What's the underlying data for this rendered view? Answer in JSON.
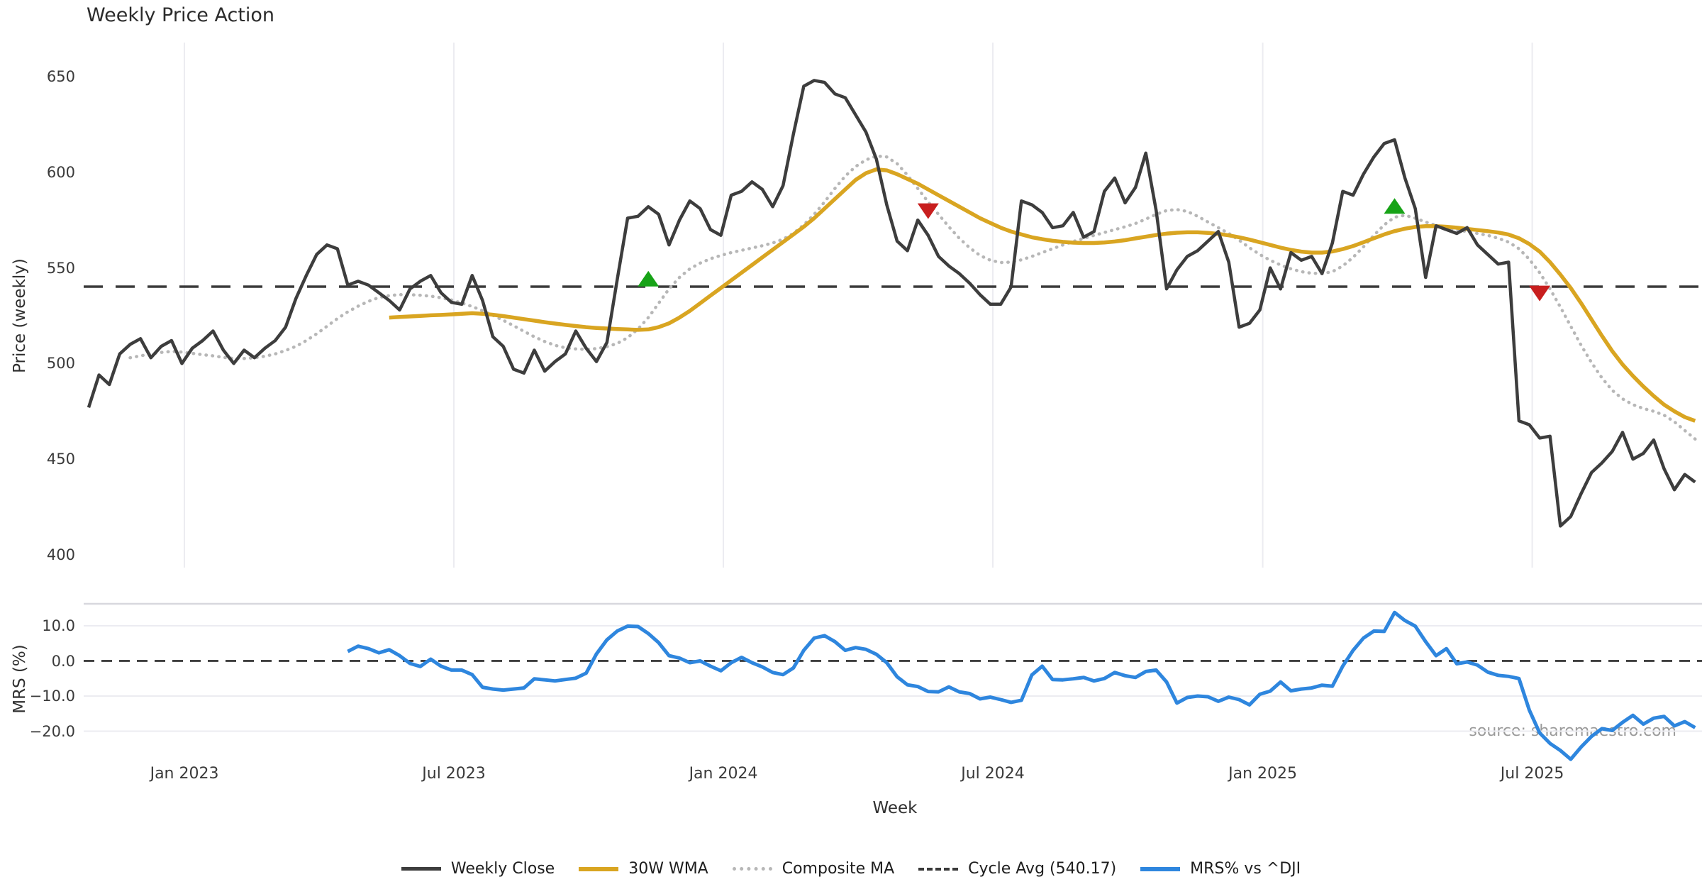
{
  "title": "Weekly Price Action",
  "source_text": "source: sharemaestro.com",
  "colors": {
    "close": "#3d3d3d",
    "wma": "#d9a521",
    "composite": "#b7b7b7",
    "cycle_avg": "#3a3a3a",
    "mrs": "#2e86de",
    "buy_marker": "#17a317",
    "sell_marker": "#c81e1e",
    "grid": "#ececf1",
    "panel_spine": "#d8d8de",
    "zero_dash": "#1f1f1f",
    "source": "#9a9a9a"
  },
  "chart_data": [
    {
      "type": "line",
      "panel": "price",
      "title": "Weekly Price Action",
      "xlabel": "Week",
      "ylabel": "Price (weekly)",
      "ylim": [
        393,
        668
      ],
      "yticks": [
        {
          "label": "650",
          "value": 650
        },
        {
          "label": "600",
          "value": 600
        },
        {
          "label": "550",
          "value": 550
        },
        {
          "label": "500",
          "value": 500
        },
        {
          "label": "450",
          "value": 450
        },
        {
          "label": "400",
          "value": 400
        }
      ],
      "xticks": [
        {
          "label": "Jan 2023",
          "week": 9.24
        },
        {
          "label": "Jul 2023",
          "week": 35.24
        },
        {
          "label": "Jan 2024",
          "week": 61.24
        },
        {
          "label": "Jul 2024",
          "week": 87.24
        },
        {
          "label": "Jan 2025",
          "week": 113.28
        },
        {
          "label": "Jul 2025",
          "week": 139.28
        }
      ],
      "grid": "vertical-only",
      "cycle_avg": {
        "name": "Cycle Avg (540.17)",
        "value": 540.17
      },
      "series": [
        {
          "name": "Weekly Close",
          "style": "solid",
          "week_start": 0,
          "values": [
            477,
            494,
            489,
            505,
            510,
            513,
            503,
            509,
            512,
            500,
            508,
            512,
            517,
            507,
            500,
            507,
            503,
            508,
            512,
            519,
            534,
            546,
            557,
            562,
            560,
            541,
            543,
            541,
            537,
            533,
            528,
            539,
            543,
            546,
            537,
            532,
            531,
            546,
            533,
            514,
            509,
            497,
            495,
            507,
            496,
            501,
            505,
            517,
            508,
            501,
            511,
            544,
            576,
            577,
            582,
            578,
            562,
            575,
            585,
            581,
            570,
            567,
            588,
            590,
            595,
            591,
            582,
            593,
            620,
            645,
            648,
            647,
            641,
            639,
            630,
            621,
            607,
            583,
            564,
            559,
            575,
            567,
            556,
            551,
            547,
            542,
            536,
            531,
            531,
            540,
            585,
            583,
            579,
            571,
            572,
            579,
            566,
            569,
            590,
            597,
            584,
            592,
            610,
            580,
            539,
            549,
            556,
            559,
            564,
            569,
            553,
            519,
            521,
            528,
            550,
            539,
            558,
            554,
            556,
            547,
            563,
            590,
            588,
            599,
            608,
            615,
            617,
            597,
            581,
            545,
            572,
            570,
            568,
            571,
            562,
            557,
            552,
            553,
            470,
            468,
            461,
            462,
            415,
            420,
            432,
            443,
            448,
            454,
            464,
            450,
            453,
            460,
            445,
            434,
            442,
            438
          ]
        },
        {
          "name": "30W WMA",
          "style": "solid",
          "week_start": 29,
          "values": [
            524,
            524.3,
            524.6,
            524.9,
            525.2,
            525.4,
            525.7,
            526,
            526.3,
            526,
            525.5,
            524.8,
            524,
            523.2,
            522.4,
            521.6,
            520.9,
            520.2,
            519.6,
            519,
            518.6,
            518.3,
            518,
            517.8,
            517.6,
            517.8,
            519,
            521,
            524,
            527.5,
            531.5,
            535.5,
            539.5,
            543.5,
            547.5,
            551.5,
            555.5,
            559.5,
            563.5,
            567.5,
            571.5,
            576,
            581,
            586,
            591,
            596,
            599.5,
            601.5,
            601,
            599,
            596.5,
            594,
            591,
            588,
            585,
            582,
            579,
            576,
            573.5,
            571,
            569,
            567.5,
            566,
            565,
            564.2,
            563.6,
            563.2,
            563,
            563,
            563.3,
            563.8,
            564.5,
            565.4,
            566.3,
            567.2,
            567.9,
            568.4,
            568.6,
            568.6,
            568.3,
            567.8,
            567,
            566,
            564.8,
            563.4,
            562,
            560.6,
            559.4,
            558.5,
            558,
            558,
            558.6,
            559.8,
            561.4,
            563.4,
            565.5,
            567.5,
            569.2,
            570.5,
            571.4,
            571.8,
            571.8,
            571.5,
            571,
            570.4,
            569.8,
            569.2,
            568.5,
            567.4,
            565.5,
            562.5,
            558.5,
            553,
            546.5,
            539.5,
            531.5,
            523,
            514.5,
            506.5,
            499.5,
            493.5,
            488,
            483,
            478.5,
            475,
            472,
            470
          ]
        },
        {
          "name": "Composite MA",
          "style": "dotted",
          "week_start": 4,
          "values": [
            503,
            504,
            505,
            505.8,
            506.3,
            506,
            505.3,
            504.6,
            504,
            503.2,
            502.6,
            502.6,
            503,
            503.8,
            505,
            506.8,
            509,
            512,
            515.5,
            519.5,
            523.5,
            527,
            530,
            532.5,
            534.5,
            535.5,
            536,
            536,
            535.7,
            535.2,
            534.4,
            533.2,
            531.6,
            529.8,
            527.6,
            525.2,
            522.6,
            519.8,
            516.8,
            514,
            511.5,
            509.5,
            508.2,
            507.6,
            507.4,
            507.8,
            508.8,
            510.5,
            513.5,
            518,
            524,
            531.5,
            539,
            545,
            549.5,
            552.5,
            554.8,
            556.5,
            558,
            559.2,
            560.4,
            561.6,
            563,
            565,
            568,
            572.5,
            578,
            584.5,
            591.5,
            598,
            603,
            606.5,
            608.5,
            608,
            604.5,
            598.5,
            591.5,
            584.5,
            578,
            571.5,
            565.5,
            560.5,
            556.5,
            554,
            552.8,
            553,
            554.2,
            556,
            558,
            560,
            562,
            563.8,
            565.4,
            567,
            568.5,
            570,
            571.5,
            573.2,
            575.5,
            578,
            580,
            580.5,
            579.5,
            577,
            574,
            571,
            568,
            564.5,
            560.5,
            557,
            554,
            551.5,
            549.5,
            548,
            547.2,
            547,
            548,
            551,
            555.5,
            561,
            567,
            572.5,
            576.5,
            577.5,
            576,
            574,
            572.2,
            570.8,
            569.8,
            569,
            568,
            567,
            565.5,
            563.5,
            560,
            554.5,
            547.5,
            539,
            529.5,
            519.5,
            509.5,
            500.5,
            492.5,
            486,
            481.5,
            478.5,
            476.5,
            475,
            473,
            469.5,
            465,
            460.5
          ]
        }
      ],
      "signals": {
        "buy": [
          {
            "week": 54,
            "price": 544
          },
          {
            "week": 126,
            "price": 582
          }
        ],
        "sell": [
          {
            "week": 81,
            "price": 580
          },
          {
            "week": 140,
            "price": 537
          }
        ]
      }
    },
    {
      "type": "line",
      "panel": "mrs",
      "ylabel": "MRS (%)",
      "ylim": [
        -29,
        16.5
      ],
      "yticks": [
        {
          "label": "10.0",
          "value": 10
        },
        {
          "label": "0.0",
          "value": 0
        },
        {
          "label": "−10.0",
          "value": -10
        },
        {
          "label": "−20.0",
          "value": -20
        }
      ],
      "zero_line": "dashed",
      "series": [
        {
          "name": "MRS% vs ^DJI",
          "style": "solid",
          "week_start": 25,
          "values": [
            2.7,
            4.2,
            3.5,
            2.3,
            3.2,
            1.5,
            -0.7,
            -1.6,
            0.5,
            -1.5,
            -2.6,
            -2.6,
            -3.9,
            -7.5,
            -8,
            -8.3,
            -8,
            -7.7,
            -5.1,
            -5.4,
            -5.7,
            -5.3,
            -4.9,
            -3.5,
            2,
            6,
            8.5,
            9.9,
            9.8,
            7.8,
            5.2,
            1.5,
            0.8,
            -0.5,
            0,
            -1.5,
            -2.8,
            -0.5,
            1,
            -0.5,
            -1.7,
            -3.3,
            -3.9,
            -2,
            3,
            6.5,
            7.2,
            5.5,
            3,
            3.8,
            3.3,
            1.9,
            -0.5,
            -4.5,
            -6.8,
            -7.3,
            -8.7,
            -8.8,
            -7.4,
            -8.8,
            -9.3,
            -10.8,
            -10.3,
            -11,
            -11.8,
            -11.2,
            -4,
            -1.5,
            -5.3,
            -5.4,
            -5.1,
            -4.7,
            -5.7,
            -5,
            -3.3,
            -4.2,
            -4.7,
            -3,
            -2.6,
            -6,
            -12,
            -10.4,
            -10,
            -10.2,
            -11.5,
            -10.3,
            -11,
            -12.5,
            -9.5,
            -8.6,
            -6,
            -8.5,
            -8,
            -7.7,
            -6.9,
            -7.2,
            -1.5,
            3,
            6.5,
            8.5,
            8.4,
            13.8,
            11.5,
            9.9,
            5.5,
            1.5,
            3.5,
            -0.8,
            -0.3,
            -1.2,
            -3.2,
            -4.1,
            -4.4,
            -5,
            -14,
            -20.5,
            -23.5,
            -25.5,
            -28,
            -24.5,
            -21.5,
            -19.3,
            -19.8,
            -17.5,
            -15.5,
            -18,
            -16.3,
            -15.8,
            -18.5,
            -17.3,
            -19
          ]
        }
      ]
    }
  ],
  "axis_labels": {
    "price_y": "Price (weekly)",
    "mrs_y": "MRS (%)",
    "x": "Week"
  },
  "legend": [
    {
      "label": "Weekly Close",
      "swatch": "solid",
      "color": "#3d3d3d",
      "thickness": 5
    },
    {
      "label": "30W WMA",
      "swatch": "solid",
      "color": "#d9a521",
      "thickness": 6
    },
    {
      "label": "Composite MA",
      "swatch": "dotted",
      "color": "#b7b7b7",
      "thickness": 5
    },
    {
      "label": "Cycle Avg (540.17)",
      "swatch": "dashed",
      "color": "#3a3a3a",
      "thickness": 4
    },
    {
      "label": "MRS% vs ^DJI",
      "swatch": "solid",
      "color": "#2e86de",
      "thickness": 6
    }
  ]
}
